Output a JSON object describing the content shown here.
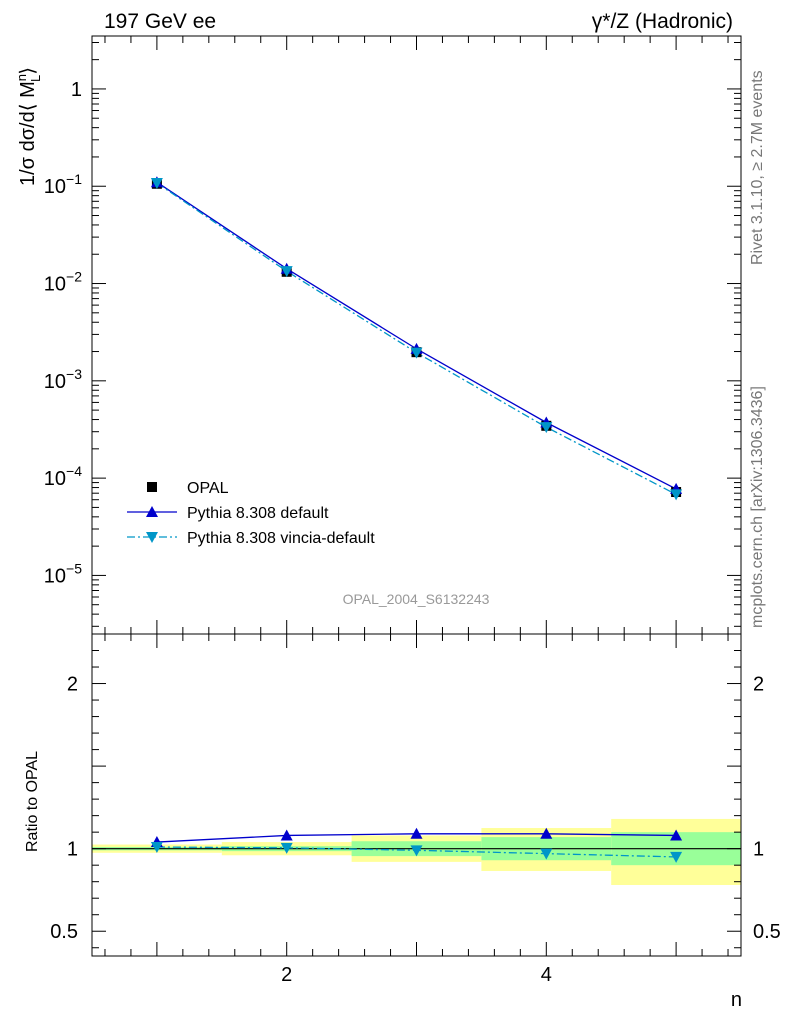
{
  "header": {
    "left": "197 GeV ee",
    "right": "γ*/Z (Hadronic)"
  },
  "side_labels": {
    "top": "Rivet 3.1.10, ≥ 2.7M events",
    "bottom": "mcplots.cern.ch [arXiv:1306.3436]"
  },
  "analysis_id": "OPAL_2004_S6132243",
  "chart_data": [
    {
      "panel": "main",
      "type": "line",
      "yscale": "log",
      "ylim": [
        2.5e-06,
        3.5
      ],
      "xlim": [
        0.5,
        5.5
      ],
      "ylabel": "1/σ dσ/d⟨ M_L^n⟩",
      "y_ticks": [
        {
          "value": 1,
          "label": "1"
        },
        {
          "value": 0.1,
          "base": "10",
          "exp": "−1"
        },
        {
          "value": 0.01,
          "base": "10",
          "exp": "−2"
        },
        {
          "value": 0.001,
          "base": "10",
          "exp": "−3"
        },
        {
          "value": 0.0001,
          "base": "10",
          "exp": "−4"
        },
        {
          "value": 1e-05,
          "base": "10",
          "exp": "−5"
        }
      ],
      "x": [
        1,
        2,
        3,
        4,
        5
      ],
      "series": [
        {
          "name": "OPAL",
          "marker": "square",
          "color": "#000000",
          "values": [
            0.106,
            0.0132,
            0.00197,
            0.000345,
            7.2e-05
          ]
        },
        {
          "name": "Pythia 8.308 default",
          "marker": "triangle-up",
          "line": "solid",
          "color": "#0000cc",
          "values": [
            0.11,
            0.0142,
            0.00213,
            0.000373,
            7.75e-05
          ]
        },
        {
          "name": "Pythia 8.308 vincia-default",
          "marker": "triangle-down",
          "line": "dashdot",
          "color": "#0096c8",
          "values": [
            0.108,
            0.0134,
            0.00195,
            0.000334,
            6.8e-05
          ]
        }
      ],
      "legend": "bottom-left",
      "grid": false
    },
    {
      "panel": "ratio",
      "type": "line",
      "ylabel": "Ratio to OPAL",
      "xlabel": "n",
      "ylim": [
        0.35,
        2.3
      ],
      "xlim": [
        0.5,
        5.5
      ],
      "y_ticks": [
        {
          "value": 0.5,
          "label": "0.5"
        },
        {
          "value": 1,
          "label": "1"
        },
        {
          "value": 2,
          "label": "2"
        }
      ],
      "x_ticks": [
        {
          "value": 2,
          "label": "2"
        },
        {
          "value": 4,
          "label": "4"
        }
      ],
      "bands": [
        {
          "x0": 0.5,
          "x1": 1.5,
          "stat": [
            0.99,
            1.01
          ],
          "total": [
            0.975,
            1.025
          ]
        },
        {
          "x0": 1.5,
          "x1": 2.5,
          "stat": [
            0.985,
            1.015
          ],
          "total": [
            0.96,
            1.04
          ]
        },
        {
          "x0": 2.5,
          "x1": 3.5,
          "stat": [
            0.955,
            1.045
          ],
          "total": [
            0.92,
            1.08
          ]
        },
        {
          "x0": 3.5,
          "x1": 4.5,
          "stat": [
            0.93,
            1.07
          ],
          "total": [
            0.865,
            1.125
          ]
        },
        {
          "x0": 4.5,
          "x1": 5.5,
          "stat": [
            0.9,
            1.1
          ],
          "total": [
            0.78,
            1.18
          ]
        }
      ],
      "band_colors": {
        "stat": "#99ff99",
        "total": "#ffff99"
      },
      "x": [
        1,
        2,
        3,
        4,
        5
      ],
      "series": [
        {
          "name": "Pythia 8.308 default",
          "marker": "triangle-up",
          "line": "solid",
          "color": "#0000cc",
          "values": [
            1.04,
            1.08,
            1.09,
            1.09,
            1.08
          ]
        },
        {
          "name": "Pythia 8.308 vincia-default",
          "marker": "triangle-down",
          "line": "dashdot",
          "color": "#0096c8",
          "values": [
            1.01,
            1.005,
            0.99,
            0.97,
            0.95
          ]
        }
      ]
    }
  ]
}
